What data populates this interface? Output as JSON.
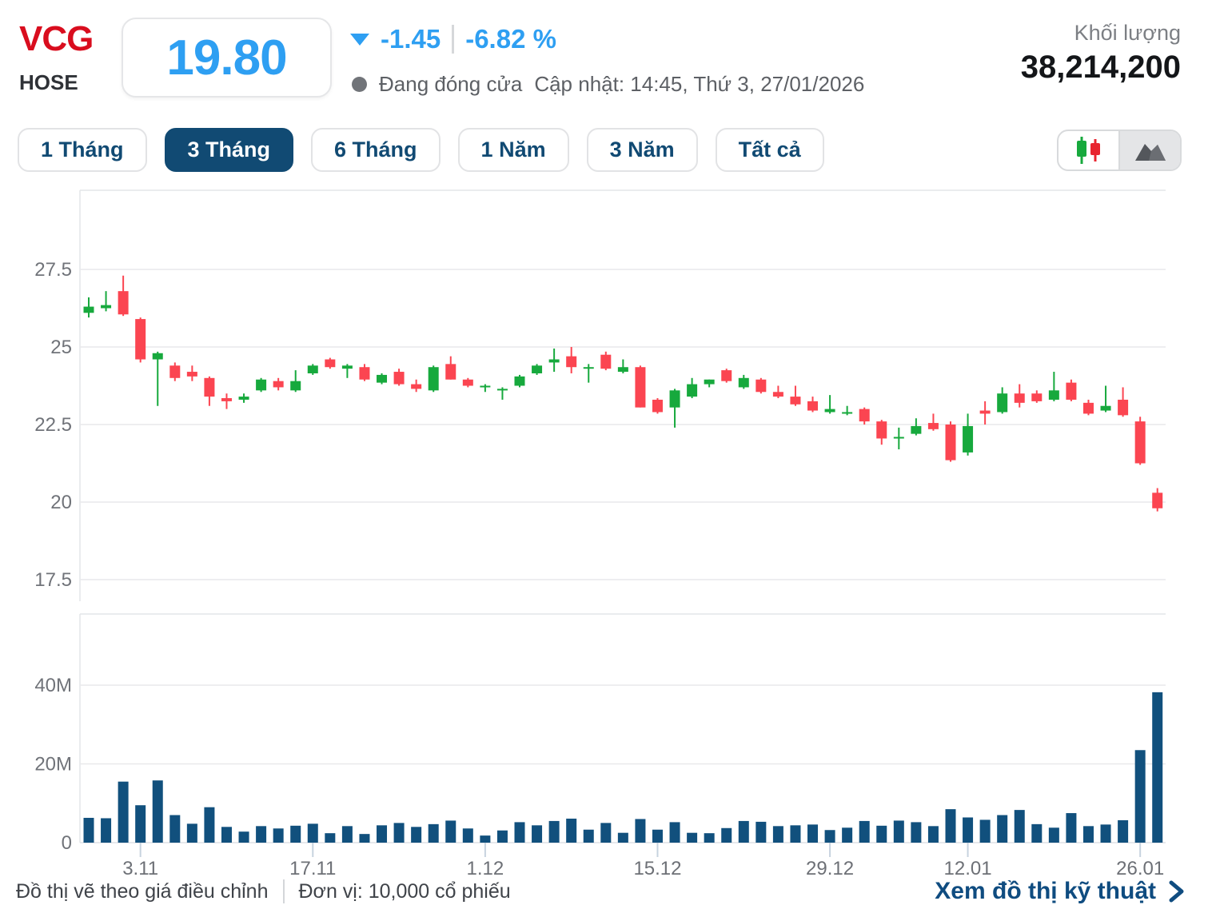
{
  "header": {
    "symbol": "VCG",
    "exchange": "HOSE",
    "price": "19.80",
    "change": "-1.45",
    "change_percent": "-6.82 %",
    "status": "Đang đóng cửa",
    "updated": "Cập nhật: 14:45, Thứ 3, 27/01/2026",
    "volume_label": "Khối lượng",
    "volume_value": "38,214,200",
    "accent_blue": "#2e9ff2",
    "symbol_red": "#d90d1e"
  },
  "tabs": [
    {
      "label": "1 Tháng",
      "active": false
    },
    {
      "label": "3 Tháng",
      "active": true
    },
    {
      "label": "6 Tháng",
      "active": false
    },
    {
      "label": "1 Năm",
      "active": false
    },
    {
      "label": "3 Năm",
      "active": false
    },
    {
      "label": "Tất cả",
      "active": false
    }
  ],
  "chart_toggle": {
    "options": [
      {
        "name": "candlestick",
        "icon": "candlestick-icon",
        "selected": true
      },
      {
        "name": "area",
        "icon": "area-chart-icon",
        "selected": false
      }
    ]
  },
  "footer": {
    "note": "Đồ thị vẽ theo giá điều chỉnh",
    "unit": "Đơn vị: 10,000 cổ phiếu",
    "link_label": "Xem đồ thị kỹ thuật"
  },
  "chart_data": {
    "type": "candlestick_with_volume",
    "title": "VCG daily price, 3 months",
    "price_axis": {
      "ticks": [
        27.5,
        25,
        22.5,
        20,
        17.5
      ],
      "range": [
        17.5,
        27.5
      ]
    },
    "volume_axis": {
      "ticks": [
        {
          "value": 40,
          "label": "40M"
        },
        {
          "value": 20,
          "label": "20M"
        },
        {
          "value": 0,
          "label": "0"
        }
      ],
      "unit_millions": true
    },
    "x_labels": [
      {
        "label": "3.11",
        "index": 3
      },
      {
        "label": "17.11",
        "index": 13
      },
      {
        "label": "1.12",
        "index": 23
      },
      {
        "label": "15.12",
        "index": 33
      },
      {
        "label": "29.12",
        "index": 43
      },
      {
        "label": "12.01",
        "index": 51
      },
      {
        "label": "26.01",
        "index": 61
      }
    ],
    "colors": {
      "up": "#17a93d",
      "down": "#fb4551",
      "volume": "#11507d"
    },
    "candles_ohlc": [
      [
        26.1,
        26.6,
        25.95,
        26.3
      ],
      [
        26.25,
        26.8,
        26.15,
        26.35
      ],
      [
        26.8,
        27.3,
        26.0,
        26.05
      ],
      [
        25.9,
        25.95,
        24.5,
        24.6
      ],
      [
        24.6,
        24.85,
        23.1,
        24.8
      ],
      [
        24.4,
        24.5,
        23.9,
        24.0
      ],
      [
        24.2,
        24.4,
        23.9,
        24.05
      ],
      [
        24.0,
        24.05,
        23.1,
        23.4
      ],
      [
        23.35,
        23.5,
        23.0,
        23.25
      ],
      [
        23.3,
        23.5,
        23.2,
        23.4
      ],
      [
        23.6,
        24.0,
        23.55,
        23.95
      ],
      [
        23.9,
        24.0,
        23.6,
        23.7
      ],
      [
        23.6,
        24.25,
        23.55,
        23.9
      ],
      [
        24.15,
        24.45,
        24.1,
        24.4
      ],
      [
        24.6,
        24.65,
        24.3,
        24.35
      ],
      [
        24.3,
        24.45,
        24.0,
        24.4
      ],
      [
        24.35,
        24.45,
        23.9,
        23.95
      ],
      [
        23.85,
        24.15,
        23.8,
        24.1
      ],
      [
        24.2,
        24.3,
        23.75,
        23.8
      ],
      [
        23.8,
        23.95,
        23.55,
        23.65
      ],
      [
        23.6,
        24.4,
        23.55,
        24.35
      ],
      [
        24.45,
        24.7,
        23.95,
        23.95
      ],
      [
        23.95,
        24.0,
        23.7,
        23.75
      ],
      [
        23.75,
        23.8,
        23.55,
        23.75
      ],
      [
        23.65,
        23.7,
        23.3,
        23.65
      ],
      [
        23.75,
        24.1,
        23.7,
        24.05
      ],
      [
        24.15,
        24.45,
        24.1,
        24.4
      ],
      [
        24.5,
        24.95,
        24.2,
        24.6
      ],
      [
        24.7,
        25.0,
        24.15,
        24.35
      ],
      [
        24.3,
        24.45,
        23.85,
        24.35
      ],
      [
        24.75,
        24.85,
        24.25,
        24.3
      ],
      [
        24.2,
        24.6,
        24.15,
        24.35
      ],
      [
        24.35,
        24.4,
        23.05,
        23.05
      ],
      [
        23.3,
        23.35,
        22.85,
        22.9
      ],
      [
        23.05,
        23.65,
        22.4,
        23.6
      ],
      [
        23.4,
        24.0,
        23.35,
        23.8
      ],
      [
        23.8,
        23.95,
        23.7,
        23.95
      ],
      [
        24.25,
        24.3,
        23.85,
        23.9
      ],
      [
        23.7,
        24.1,
        23.65,
        24.0
      ],
      [
        23.95,
        24.0,
        23.5,
        23.55
      ],
      [
        23.55,
        23.75,
        23.35,
        23.4
      ],
      [
        23.4,
        23.75,
        23.1,
        23.15
      ],
      [
        23.25,
        23.4,
        22.9,
        22.95
      ],
      [
        22.9,
        23.45,
        22.85,
        23.0
      ],
      [
        22.9,
        23.1,
        22.8,
        22.9
      ],
      [
        23.0,
        23.05,
        22.5,
        22.6
      ],
      [
        22.6,
        22.65,
        21.85,
        22.05
      ],
      [
        22.1,
        22.4,
        21.7,
        22.1
      ],
      [
        22.2,
        22.7,
        22.15,
        22.45
      ],
      [
        22.55,
        22.85,
        22.3,
        22.35
      ],
      [
        22.5,
        22.6,
        21.3,
        21.35
      ],
      [
        21.6,
        22.85,
        21.5,
        22.45
      ],
      [
        22.95,
        23.25,
        22.5,
        22.85
      ],
      [
        22.9,
        23.7,
        22.85,
        23.5
      ],
      [
        23.5,
        23.8,
        23.05,
        23.2
      ],
      [
        23.5,
        23.6,
        23.2,
        23.25
      ],
      [
        23.3,
        24.2,
        23.25,
        23.6
      ],
      [
        23.85,
        23.95,
        23.25,
        23.3
      ],
      [
        23.2,
        23.3,
        22.8,
        22.85
      ],
      [
        22.95,
        23.75,
        22.9,
        23.1
      ],
      [
        23.3,
        23.7,
        22.75,
        22.8
      ],
      [
        22.6,
        22.75,
        21.2,
        21.25
      ],
      [
        20.3,
        20.45,
        19.7,
        19.8
      ]
    ],
    "volumes_millions": [
      6.3,
      6.2,
      15.5,
      9.5,
      15.8,
      7.0,
      4.8,
      9.0,
      4.0,
      2.8,
      4.2,
      3.6,
      4.3,
      4.8,
      2.4,
      4.2,
      2.2,
      4.4,
      5.0,
      4.0,
      4.7,
      5.6,
      3.6,
      1.8,
      3.1,
      5.2,
      4.4,
      5.5,
      6.1,
      3.3,
      5.0,
      2.5,
      6.0,
      3.3,
      5.2,
      2.5,
      2.4,
      3.7,
      5.5,
      5.3,
      4.2,
      4.4,
      4.6,
      3.2,
      3.8,
      5.5,
      4.3,
      5.6,
      5.2,
      4.2,
      8.5,
      6.4,
      5.8,
      7.0,
      8.3,
      4.7,
      3.8,
      7.5,
      4.2,
      4.6,
      5.7,
      23.5,
      38.2
    ]
  }
}
